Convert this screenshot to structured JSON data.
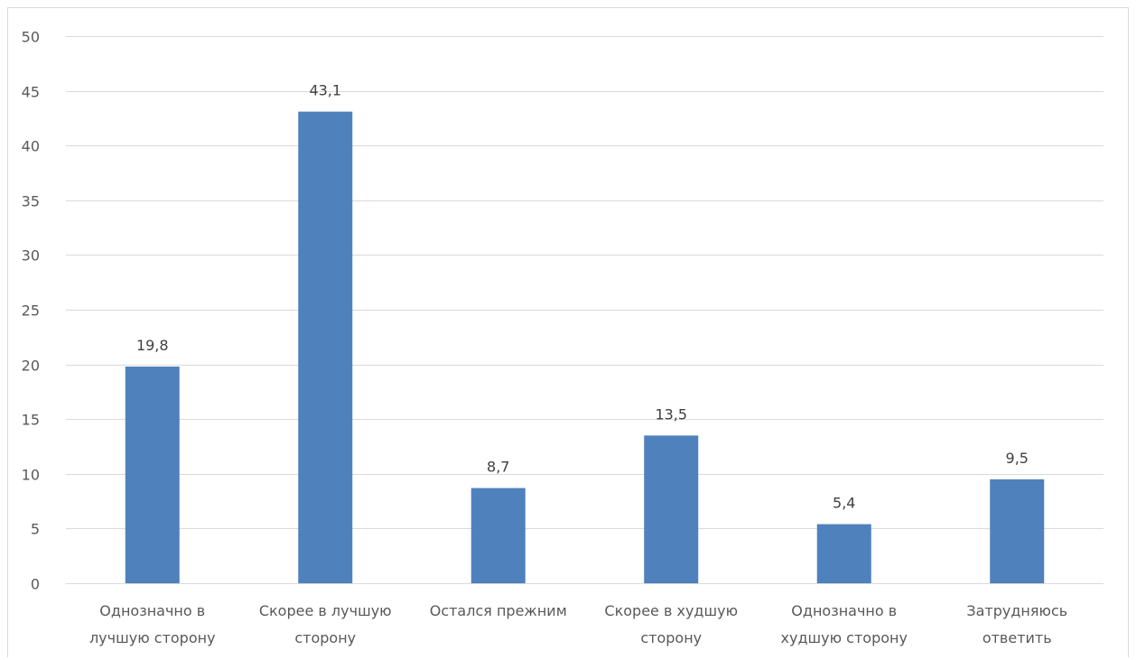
{
  "chart_data": {
    "type": "bar",
    "categories": [
      [
        "Однозначно в",
        "лучшую сторону"
      ],
      [
        "Скорее в лучшую",
        "сторону"
      ],
      [
        "Остался прежним"
      ],
      [
        "Скорее в худшую",
        "сторону"
      ],
      [
        "Однозначно в",
        "худшую сторону"
      ],
      [
        "Затрудняюсь",
        "ответить"
      ]
    ],
    "values": [
      19.8,
      43.1,
      8.7,
      13.5,
      5.4,
      9.5
    ],
    "value_labels": [
      "19,8",
      "43,1",
      "8,7",
      "13,5",
      "5,4",
      "9,5"
    ],
    "ylim": [
      0,
      50
    ],
    "yticks": [
      0,
      5,
      10,
      15,
      20,
      25,
      30,
      35,
      40,
      45,
      50
    ],
    "grid": true,
    "legend": false,
    "bar_color": "#4f81bd",
    "grid_color": "#d9d9d9"
  }
}
